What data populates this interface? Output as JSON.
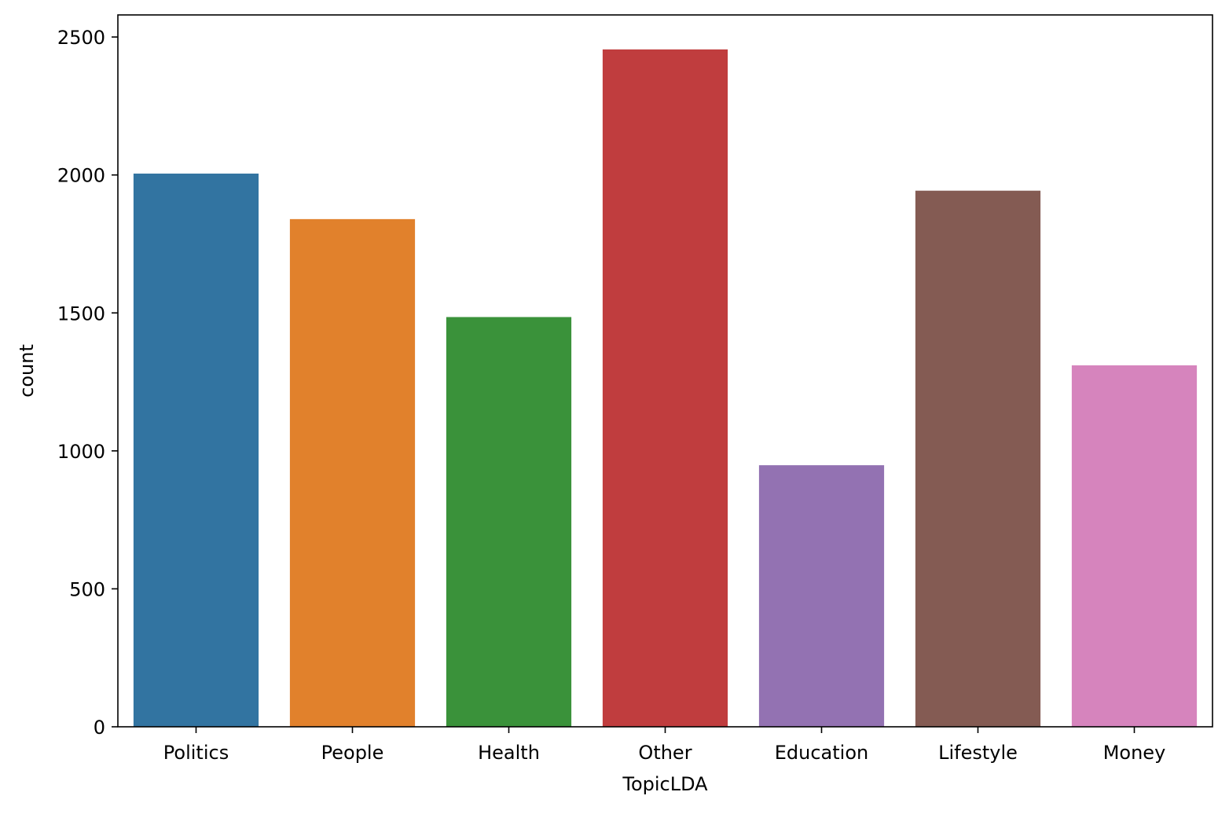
{
  "chart_data": {
    "type": "bar",
    "title": "",
    "xlabel": "TopicLDA",
    "ylabel": "count",
    "categories": [
      "Politics",
      "People",
      "Health",
      "Other",
      "Education",
      "Lifestyle",
      "Money"
    ],
    "values": [
      2005,
      1840,
      1485,
      2455,
      948,
      1943,
      1310
    ],
    "colors": [
      "#3274a1",
      "#e1812c",
      "#3a923a",
      "#c03d3e",
      "#9372b2",
      "#845b53",
      "#d684bd"
    ],
    "ylim": [
      0,
      2580
    ],
    "yticks": [
      0,
      500,
      1000,
      1500,
      2000,
      2500
    ],
    "grid": false,
    "legend": "none"
  }
}
